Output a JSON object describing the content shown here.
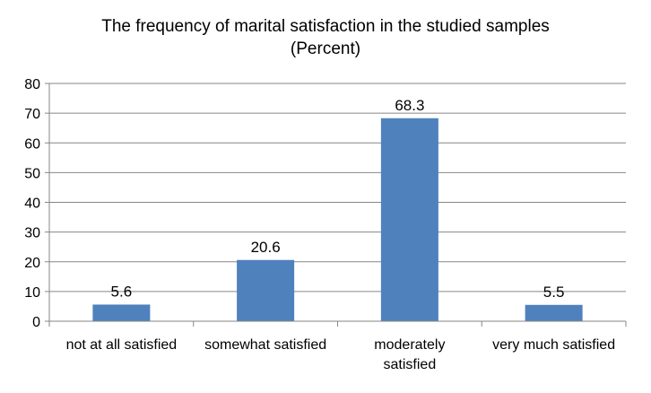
{
  "chart_data": {
    "type": "bar",
    "title_lines": [
      "The frequency of marital satisfaction in the studied samples",
      "(Percent)"
    ],
    "categories": [
      [
        "not at all satisfied"
      ],
      [
        "somewhat satisfied"
      ],
      [
        "moderately",
        "satisfied"
      ],
      [
        "very much satisfied"
      ]
    ],
    "values": [
      5.6,
      20.6,
      68.3,
      5.5
    ],
    "data_labels": [
      "5.6",
      "20.6",
      "68.3",
      "5.5"
    ],
    "ylim": [
      0,
      80
    ],
    "yticks": [
      0,
      10,
      20,
      30,
      40,
      50,
      60,
      70,
      80
    ],
    "grid": true,
    "legend": "none",
    "colors": {
      "bar": "#4f81bd",
      "grid": "#868686",
      "axis": "#868686"
    }
  }
}
